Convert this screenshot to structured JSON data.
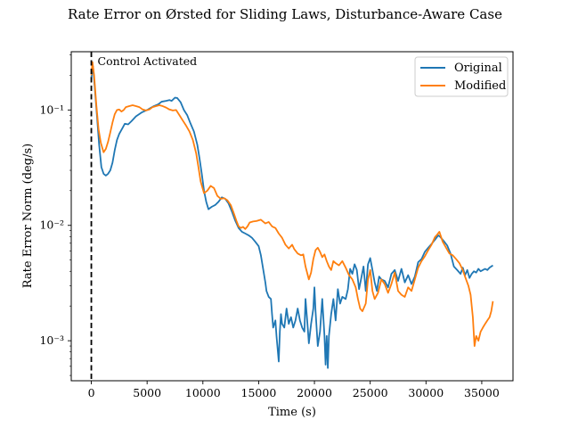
{
  "chart_data": {
    "type": "line",
    "title": "Rate Error on Ørsted for Sliding Laws, Disturbance-Aware Case",
    "xlabel": "Time (s)",
    "ylabel": "Rate Error Norm (deg/s)",
    "xlim": [
      -1800,
      37800
    ],
    "ylim": [
      0.00045,
      0.32
    ],
    "yscale": "log",
    "grid": false,
    "legend_position": "top-right",
    "x_ticks": [
      0,
      5000,
      10000,
      15000,
      20000,
      25000,
      30000,
      35000
    ],
    "x_tick_labels": [
      "0",
      "5000",
      "10000",
      "15000",
      "20000",
      "25000",
      "30000",
      "35000"
    ],
    "y_ticks": [
      0.001,
      0.01,
      0.1
    ],
    "y_tick_labels": [
      "10⁻³",
      "10⁻²",
      "10⁻¹"
    ],
    "annotations": [
      {
        "text": "Control Activated",
        "x": 0,
        "style": "vertical dashed line"
      }
    ],
    "series": [
      {
        "name": "Original",
        "color": "#1f77b4",
        "points": [
          [
            0,
            0.19
          ],
          [
            150,
            0.24
          ],
          [
            300,
            0.16
          ],
          [
            500,
            0.09
          ],
          [
            700,
            0.05
          ],
          [
            900,
            0.032
          ],
          [
            1100,
            0.028
          ],
          [
            1300,
            0.027
          ],
          [
            1500,
            0.028
          ],
          [
            1700,
            0.03
          ],
          [
            1900,
            0.035
          ],
          [
            2100,
            0.045
          ],
          [
            2300,
            0.055
          ],
          [
            2500,
            0.062
          ],
          [
            2800,
            0.07
          ],
          [
            3000,
            0.076
          ],
          [
            3300,
            0.075
          ],
          [
            3600,
            0.08
          ],
          [
            4000,
            0.088
          ],
          [
            4500,
            0.095
          ],
          [
            5000,
            0.1
          ],
          [
            5300,
            0.104
          ],
          [
            5600,
            0.108
          ],
          [
            6000,
            0.112
          ],
          [
            6300,
            0.118
          ],
          [
            6700,
            0.12
          ],
          [
            7000,
            0.122
          ],
          [
            7200,
            0.12
          ],
          [
            7500,
            0.128
          ],
          [
            7700,
            0.127
          ],
          [
            8000,
            0.117
          ],
          [
            8300,
            0.1
          ],
          [
            8600,
            0.09
          ],
          [
            8900,
            0.076
          ],
          [
            9200,
            0.065
          ],
          [
            9500,
            0.05
          ],
          [
            9700,
            0.038
          ],
          [
            9900,
            0.028
          ],
          [
            10100,
            0.02
          ],
          [
            10300,
            0.016
          ],
          [
            10500,
            0.0138
          ],
          [
            10800,
            0.0145
          ],
          [
            11100,
            0.015
          ],
          [
            11400,
            0.016
          ],
          [
            11700,
            0.0175
          ],
          [
            12000,
            0.017
          ],
          [
            12300,
            0.0155
          ],
          [
            12600,
            0.0132
          ],
          [
            12900,
            0.011
          ],
          [
            13200,
            0.0095
          ],
          [
            13500,
            0.0088
          ],
          [
            13800,
            0.0085
          ],
          [
            14100,
            0.0082
          ],
          [
            14400,
            0.0078
          ],
          [
            14700,
            0.0072
          ],
          [
            15000,
            0.0066
          ],
          [
            15200,
            0.0055
          ],
          [
            15400,
            0.0042
          ],
          [
            15600,
            0.0032
          ],
          [
            15700,
            0.0027
          ],
          [
            15900,
            0.0024
          ],
          [
            16100,
            0.0023
          ],
          [
            16200,
            0.0017
          ],
          [
            16300,
            0.0013
          ],
          [
            16500,
            0.0015
          ],
          [
            16600,
            0.0011
          ],
          [
            16800,
            0.00066
          ],
          [
            16900,
            0.0012
          ],
          [
            17000,
            0.0017
          ],
          [
            17100,
            0.0014
          ],
          [
            17300,
            0.0013
          ],
          [
            17500,
            0.0019
          ],
          [
            17700,
            0.0014
          ],
          [
            17900,
            0.0016
          ],
          [
            18100,
            0.0013
          ],
          [
            18300,
            0.0015
          ],
          [
            18500,
            0.0019
          ],
          [
            18700,
            0.0015
          ],
          [
            18900,
            0.0013
          ],
          [
            19100,
            0.0012
          ],
          [
            19200,
            0.0023
          ],
          [
            19400,
            0.0013
          ],
          [
            19500,
            0.00095
          ],
          [
            19700,
            0.0014
          ],
          [
            19900,
            0.0019
          ],
          [
            20000,
            0.0029
          ],
          [
            20100,
            0.0018
          ],
          [
            20300,
            0.0009
          ],
          [
            20500,
            0.0012
          ],
          [
            20700,
            0.0023
          ],
          [
            20900,
            0.0011
          ],
          [
            21000,
            0.00062
          ],
          [
            21100,
            0.0011
          ],
          [
            21200,
            0.00058
          ],
          [
            21300,
            0.0011
          ],
          [
            21500,
            0.0017
          ],
          [
            21700,
            0.0023
          ],
          [
            21900,
            0.0015
          ],
          [
            22100,
            0.0028
          ],
          [
            22300,
            0.0021
          ],
          [
            22500,
            0.0024
          ],
          [
            22800,
            0.0023
          ],
          [
            23000,
            0.0028
          ],
          [
            23200,
            0.0042
          ],
          [
            23400,
            0.0038
          ],
          [
            23600,
            0.0046
          ],
          [
            23800,
            0.0041
          ],
          [
            24000,
            0.0028
          ],
          [
            24200,
            0.0035
          ],
          [
            24400,
            0.0044
          ],
          [
            24600,
            0.0027
          ],
          [
            24800,
            0.0046
          ],
          [
            25000,
            0.0052
          ],
          [
            25200,
            0.0041
          ],
          [
            25400,
            0.0032
          ],
          [
            25600,
            0.0027
          ],
          [
            25800,
            0.0036
          ],
          [
            26000,
            0.0034
          ],
          [
            26300,
            0.0033
          ],
          [
            26600,
            0.0029
          ],
          [
            26900,
            0.0038
          ],
          [
            27200,
            0.0041
          ],
          [
            27500,
            0.0033
          ],
          [
            27800,
            0.0042
          ],
          [
            28100,
            0.0032
          ],
          [
            28400,
            0.0037
          ],
          [
            28700,
            0.0031
          ],
          [
            29000,
            0.0036
          ],
          [
            29300,
            0.0048
          ],
          [
            29600,
            0.0051
          ],
          [
            29900,
            0.0059
          ],
          [
            30200,
            0.0064
          ],
          [
            30500,
            0.0069
          ],
          [
            30800,
            0.0075
          ],
          [
            31100,
            0.0082
          ],
          [
            31300,
            0.0079
          ],
          [
            31600,
            0.0073
          ],
          [
            31900,
            0.0067
          ],
          [
            32200,
            0.0057
          ],
          [
            32500,
            0.0044
          ],
          [
            32800,
            0.0041
          ],
          [
            33100,
            0.0038
          ],
          [
            33300,
            0.0043
          ],
          [
            33500,
            0.0037
          ],
          [
            33700,
            0.0041
          ],
          [
            33900,
            0.0035
          ],
          [
            34100,
            0.0038
          ],
          [
            34300,
            0.004
          ],
          [
            34500,
            0.0039
          ],
          [
            34700,
            0.0042
          ],
          [
            34900,
            0.004
          ],
          [
            35100,
            0.0041
          ],
          [
            35300,
            0.0042
          ],
          [
            35500,
            0.0041
          ],
          [
            35700,
            0.0043
          ],
          [
            36000,
            0.0045
          ]
        ]
      },
      {
        "name": "Modified",
        "color": "#ff7f0e",
        "points": [
          [
            0,
            0.2
          ],
          [
            100,
            0.26
          ],
          [
            250,
            0.2
          ],
          [
            450,
            0.11
          ],
          [
            650,
            0.068
          ],
          [
            850,
            0.052
          ],
          [
            1100,
            0.043
          ],
          [
            1300,
            0.046
          ],
          [
            1500,
            0.053
          ],
          [
            1700,
            0.064
          ],
          [
            1900,
            0.078
          ],
          [
            2100,
            0.092
          ],
          [
            2300,
            0.1
          ],
          [
            2500,
            0.101
          ],
          [
            2700,
            0.097
          ],
          [
            2900,
            0.1
          ],
          [
            3100,
            0.106
          ],
          [
            3400,
            0.108
          ],
          [
            3700,
            0.11
          ],
          [
            4000,
            0.108
          ],
          [
            4300,
            0.106
          ],
          [
            4600,
            0.101
          ],
          [
            4900,
            0.099
          ],
          [
            5200,
            0.101
          ],
          [
            5500,
            0.106
          ],
          [
            5800,
            0.108
          ],
          [
            6100,
            0.11
          ],
          [
            6400,
            0.108
          ],
          [
            6700,
            0.105
          ],
          [
            7000,
            0.101
          ],
          [
            7300,
            0.099
          ],
          [
            7600,
            0.1
          ],
          [
            7900,
            0.09
          ],
          [
            8200,
            0.081
          ],
          [
            8500,
            0.073
          ],
          [
            8800,
            0.065
          ],
          [
            9100,
            0.055
          ],
          [
            9400,
            0.042
          ],
          [
            9600,
            0.032
          ],
          [
            9800,
            0.024
          ],
          [
            10100,
            0.019
          ],
          [
            10400,
            0.02
          ],
          [
            10700,
            0.022
          ],
          [
            11000,
            0.021
          ],
          [
            11300,
            0.018
          ],
          [
            11600,
            0.017
          ],
          [
            11900,
            0.0172
          ],
          [
            12200,
            0.0165
          ],
          [
            12500,
            0.015
          ],
          [
            12800,
            0.0125
          ],
          [
            13000,
            0.011
          ],
          [
            13200,
            0.0098
          ],
          [
            13400,
            0.0095
          ],
          [
            13600,
            0.0097
          ],
          [
            13800,
            0.0093
          ],
          [
            14000,
            0.0098
          ],
          [
            14200,
            0.0106
          ],
          [
            14500,
            0.0108
          ],
          [
            14800,
            0.0109
          ],
          [
            15200,
            0.0112
          ],
          [
            15600,
            0.0104
          ],
          [
            15900,
            0.0107
          ],
          [
            16200,
            0.0098
          ],
          [
            16500,
            0.0095
          ],
          [
            16800,
            0.0085
          ],
          [
            17100,
            0.0078
          ],
          [
            17400,
            0.0068
          ],
          [
            17700,
            0.0063
          ],
          [
            18000,
            0.0068
          ],
          [
            18200,
            0.0062
          ],
          [
            18500,
            0.0057
          ],
          [
            18800,
            0.0055
          ],
          [
            19000,
            0.0056
          ],
          [
            19200,
            0.0044
          ],
          [
            19500,
            0.0034
          ],
          [
            19700,
            0.0039
          ],
          [
            19900,
            0.0051
          ],
          [
            20100,
            0.0061
          ],
          [
            20300,
            0.0064
          ],
          [
            20500,
            0.0059
          ],
          [
            20700,
            0.0053
          ],
          [
            20900,
            0.0056
          ],
          [
            21100,
            0.0049
          ],
          [
            21300,
            0.0044
          ],
          [
            21500,
            0.0041
          ],
          [
            21700,
            0.0049
          ],
          [
            21900,
            0.0047
          ],
          [
            22200,
            0.0045
          ],
          [
            22500,
            0.0049
          ],
          [
            22800,
            0.0043
          ],
          [
            23100,
            0.0037
          ],
          [
            23400,
            0.0034
          ],
          [
            23700,
            0.0029
          ],
          [
            23900,
            0.0023
          ],
          [
            24100,
            0.0019
          ],
          [
            24300,
            0.0018
          ],
          [
            24600,
            0.0021
          ],
          [
            24800,
            0.0034
          ],
          [
            25000,
            0.0041
          ],
          [
            25200,
            0.0027
          ],
          [
            25400,
            0.0023
          ],
          [
            25700,
            0.0026
          ],
          [
            26000,
            0.0034
          ],
          [
            26300,
            0.0031
          ],
          [
            26600,
            0.0026
          ],
          [
            26900,
            0.0031
          ],
          [
            27200,
            0.0039
          ],
          [
            27500,
            0.0027
          ],
          [
            27800,
            0.0025
          ],
          [
            28100,
            0.0024
          ],
          [
            28400,
            0.0029
          ],
          [
            28700,
            0.0027
          ],
          [
            29000,
            0.0034
          ],
          [
            29300,
            0.0043
          ],
          [
            29600,
            0.0049
          ],
          [
            29900,
            0.0054
          ],
          [
            30200,
            0.0061
          ],
          [
            30500,
            0.0068
          ],
          [
            30800,
            0.0079
          ],
          [
            31000,
            0.0083
          ],
          [
            31200,
            0.0088
          ],
          [
            31500,
            0.0072
          ],
          [
            31800,
            0.0064
          ],
          [
            32100,
            0.0057
          ],
          [
            32400,
            0.0055
          ],
          [
            32700,
            0.0051
          ],
          [
            33000,
            0.0047
          ],
          [
            33300,
            0.0041
          ],
          [
            33500,
            0.0036
          ],
          [
            33800,
            0.003
          ],
          [
            34000,
            0.0025
          ],
          [
            34200,
            0.0016
          ],
          [
            34350,
            0.0009
          ],
          [
            34500,
            0.0011
          ],
          [
            34700,
            0.001
          ],
          [
            34900,
            0.0012
          ],
          [
            35100,
            0.0013
          ],
          [
            35300,
            0.0014
          ],
          [
            35500,
            0.0015
          ],
          [
            35700,
            0.0016
          ],
          [
            35850,
            0.0018
          ],
          [
            36000,
            0.0022
          ]
        ]
      }
    ]
  }
}
